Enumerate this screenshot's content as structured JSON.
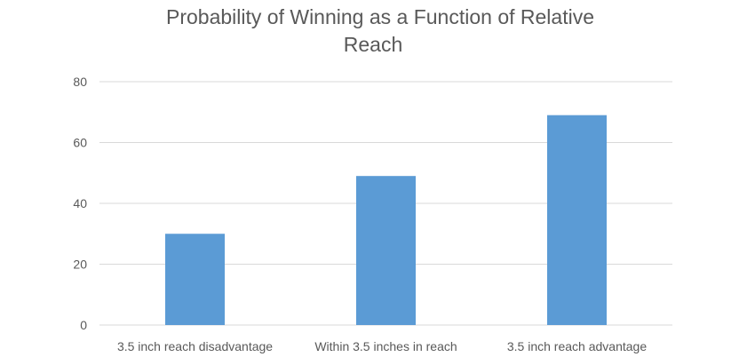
{
  "chart_data": {
    "type": "bar",
    "title": "Probability of Winning as a Function of Relative Reach",
    "title_lines": [
      "Probability of Winning as a Function of Relative",
      "Reach"
    ],
    "xlabel": "",
    "ylabel": "",
    "categories": [
      "3.5 inch reach disadvantage",
      "Within 3.5 inches in reach",
      "3.5 inch reach advantage"
    ],
    "values": [
      30,
      49,
      69
    ],
    "ylim": [
      0,
      80
    ],
    "yticks": [
      0,
      20,
      40,
      60,
      80
    ],
    "grid": true,
    "legend": "none",
    "colors": {
      "bar": "#5B9BD5",
      "grid": "#D9D9D9",
      "text": "#595959"
    }
  }
}
